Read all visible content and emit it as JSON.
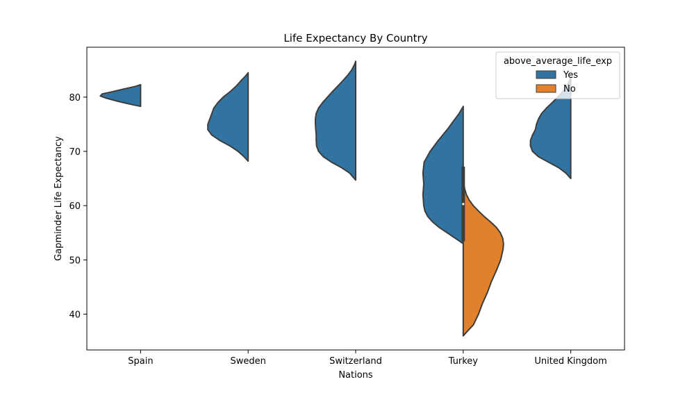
{
  "chart_data": {
    "type": "violin",
    "title": "Life Expectancy By Country",
    "xlabel": "Nations",
    "ylabel": "Gapminder Life Expectancy",
    "categories": [
      "Spain",
      "Sweden",
      "Switzerland",
      "Turkey",
      "United Kingdom"
    ],
    "ylim": [
      33.4,
      89.2
    ],
    "yticks": [
      40,
      50,
      60,
      70,
      80
    ],
    "legend": {
      "title": "above_average_life_exp",
      "placement": "top-right",
      "entries": [
        {
          "label": "Yes",
          "color": "#3274a1"
        },
        {
          "label": "No",
          "color": "#e1812c"
        }
      ]
    },
    "series": [
      {
        "name": "Yes",
        "side": "left",
        "color": "#3274a1",
        "violins": [
          {
            "category": "Spain",
            "min": 78.3,
            "max": 82.3,
            "density": [
              [
                78.3,
                0.0
              ],
              [
                78.6,
                0.2
              ],
              [
                79.2,
                0.55
              ],
              [
                79.8,
                0.85
              ],
              [
                80.2,
                1.0
              ],
              [
                80.6,
                0.95
              ],
              [
                81.0,
                0.7
              ],
              [
                81.5,
                0.42
              ],
              [
                82.0,
                0.12
              ],
              [
                82.3,
                0.0
              ]
            ]
          },
          {
            "category": "Sweden",
            "min": 68.2,
            "max": 84.5,
            "density": [
              [
                68.2,
                0.0
              ],
              [
                69.0,
                0.1
              ],
              [
                70.0,
                0.25
              ],
              [
                71.0,
                0.45
              ],
              [
                72.0,
                0.7
              ],
              [
                73.0,
                0.9
              ],
              [
                74.0,
                1.0
              ],
              [
                75.0,
                1.0
              ],
              [
                76.0,
                0.95
              ],
              [
                77.0,
                0.9
              ],
              [
                78.0,
                0.85
              ],
              [
                79.0,
                0.75
              ],
              [
                80.0,
                0.62
              ],
              [
                81.0,
                0.45
              ],
              [
                82.0,
                0.3
              ],
              [
                83.0,
                0.18
              ],
              [
                84.0,
                0.05
              ],
              [
                84.5,
                0.0
              ]
            ]
          },
          {
            "category": "Switzerland",
            "min": 64.7,
            "max": 86.6,
            "density": [
              [
                64.7,
                0.0
              ],
              [
                66.0,
                0.15
              ],
              [
                67.0,
                0.35
              ],
              [
                68.0,
                0.6
              ],
              [
                69.0,
                0.8
              ],
              [
                70.0,
                0.92
              ],
              [
                71.0,
                0.97
              ],
              [
                72.0,
                0.98
              ],
              [
                73.0,
                0.98
              ],
              [
                74.0,
                0.99
              ],
              [
                75.0,
                1.0
              ],
              [
                76.0,
                1.0
              ],
              [
                77.0,
                0.98
              ],
              [
                78.0,
                0.92
              ],
              [
                79.0,
                0.82
              ],
              [
                80.0,
                0.7
              ],
              [
                81.0,
                0.58
              ],
              [
                82.0,
                0.45
              ],
              [
                83.0,
                0.32
              ],
              [
                84.0,
                0.2
              ],
              [
                85.0,
                0.1
              ],
              [
                86.0,
                0.03
              ],
              [
                86.6,
                0.0
              ]
            ]
          },
          {
            "category": "Turkey",
            "min": 53.0,
            "max": 78.3,
            "density": [
              [
                53.0,
                0.0
              ],
              [
                54.0,
                0.2
              ],
              [
                55.0,
                0.4
              ],
              [
                56.0,
                0.6
              ],
              [
                57.0,
                0.76
              ],
              [
                58.0,
                0.88
              ],
              [
                59.0,
                0.95
              ],
              [
                60.0,
                0.98
              ],
              [
                61.0,
                0.99
              ],
              [
                62.0,
                1.0
              ],
              [
                64.0,
                0.98
              ],
              [
                66.0,
                1.0
              ],
              [
                68.0,
                0.97
              ],
              [
                70.0,
                0.82
              ],
              [
                72.0,
                0.62
              ],
              [
                74.0,
                0.4
              ],
              [
                76.0,
                0.2
              ],
              [
                77.0,
                0.1
              ],
              [
                78.3,
                0.0
              ]
            ]
          },
          {
            "category": "United Kingdom",
            "min": 65.0,
            "max": 83.8,
            "density": [
              [
                65.0,
                0.0
              ],
              [
                66.0,
                0.12
              ],
              [
                67.0,
                0.3
              ],
              [
                68.0,
                0.55
              ],
              [
                69.0,
                0.8
              ],
              [
                70.0,
                0.95
              ],
              [
                71.0,
                1.0
              ],
              [
                72.0,
                1.0
              ],
              [
                73.0,
                0.95
              ],
              [
                74.0,
                0.88
              ],
              [
                75.0,
                0.85
              ],
              [
                76.0,
                0.8
              ],
              [
                77.0,
                0.72
              ],
              [
                78.0,
                0.6
              ],
              [
                79.0,
                0.46
              ],
              [
                80.0,
                0.32
              ],
              [
                81.0,
                0.2
              ],
              [
                82.0,
                0.1
              ],
              [
                83.0,
                0.03
              ],
              [
                83.8,
                0.0
              ]
            ]
          }
        ]
      },
      {
        "name": "No",
        "side": "right",
        "color": "#e1812c",
        "violins": [
          {
            "category": "Turkey",
            "min": 36.0,
            "max": 64.6,
            "density": [
              [
                36.0,
                0.0
              ],
              [
                37.0,
                0.12
              ],
              [
                38.0,
                0.25
              ],
              [
                40.0,
                0.38
              ],
              [
                42.0,
                0.48
              ],
              [
                44.0,
                0.6
              ],
              [
                46.0,
                0.7
              ],
              [
                48.0,
                0.82
              ],
              [
                50.0,
                0.93
              ],
              [
                52.0,
                0.99
              ],
              [
                53.0,
                1.0
              ],
              [
                54.0,
                0.98
              ],
              [
                55.0,
                0.92
              ],
              [
                56.0,
                0.82
              ],
              [
                57.0,
                0.68
              ],
              [
                58.0,
                0.52
              ],
              [
                59.0,
                0.38
              ],
              [
                60.0,
                0.25
              ],
              [
                61.0,
                0.15
              ],
              [
                62.0,
                0.08
              ],
              [
                63.0,
                0.04
              ],
              [
                64.6,
                0.0
              ]
            ]
          }
        ]
      }
    ],
    "inner_box": {
      "category": "Turkey",
      "q1": 53.4,
      "q3": 67.2,
      "median": 60.3
    }
  }
}
